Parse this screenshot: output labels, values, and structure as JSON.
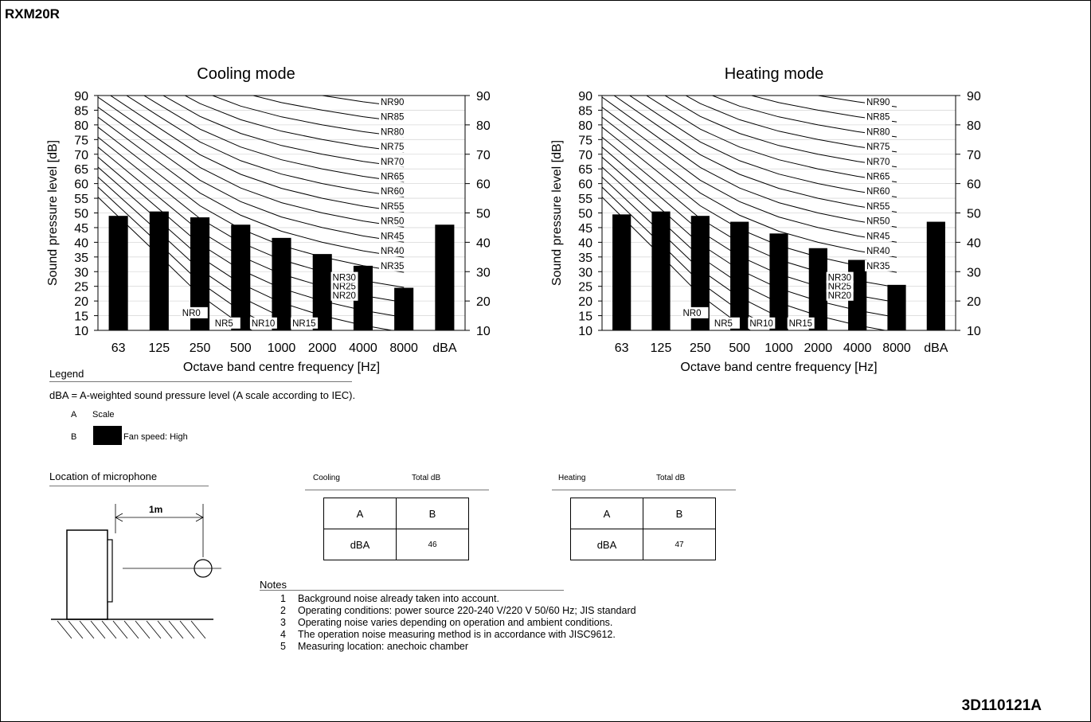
{
  "document": {
    "title": "RXM20R",
    "code": "3D110121A"
  },
  "chart_data": [
    {
      "type": "bar",
      "title": "Cooling mode",
      "xlabel": "Octave band centre frequency [Hz]",
      "ylabel": "Sound pressure level [dB]",
      "ylim": [
        10,
        90
      ],
      "left_ticks": [
        "90",
        "85",
        "80",
        "75",
        "70",
        "65",
        "60",
        "55",
        "50",
        "45",
        "40",
        "35",
        "30",
        "25",
        "20",
        "15",
        "10"
      ],
      "right_ticks": [
        "90",
        "80",
        "70",
        "60",
        "50",
        "40",
        "30",
        "20",
        "10"
      ],
      "categories": [
        "63",
        "125",
        "250",
        "500",
        "1000",
        "2000",
        "4000",
        "8000",
        "dBA"
      ],
      "series": [
        {
          "values": [
            49,
            50.5,
            48.5,
            46,
            41.5,
            36,
            32,
            24.5,
            46
          ]
        }
      ],
      "nr_curves": [
        "NR0",
        "NR5",
        "NR10",
        "NR15",
        "NR20",
        "NR25",
        "NR30",
        "NR35",
        "NR40",
        "NR45",
        "NR50",
        "NR55",
        "NR60",
        "NR65",
        "NR70",
        "NR75",
        "NR80",
        "NR85",
        "NR90"
      ],
      "grid": true
    },
    {
      "type": "bar",
      "title": "Heating mode",
      "xlabel": "Octave band centre frequency [Hz]",
      "ylabel": "Sound pressure level [dB]",
      "ylim": [
        10,
        90
      ],
      "left_ticks": [
        "90",
        "85",
        "80",
        "75",
        "70",
        "65",
        "60",
        "55",
        "50",
        "45",
        "40",
        "35",
        "30",
        "25",
        "20",
        "15",
        "10"
      ],
      "right_ticks": [
        "90",
        "80",
        "70",
        "60",
        "50",
        "40",
        "30",
        "20",
        "10"
      ],
      "categories": [
        "63",
        "125",
        "250",
        "500",
        "1000",
        "2000",
        "4000",
        "8000",
        "dBA"
      ],
      "series": [
        {
          "values": [
            49.5,
            50.5,
            49,
            47,
            43,
            38,
            34,
            25.5,
            47
          ]
        }
      ],
      "nr_curves": [
        "NR0",
        "NR5",
        "NR10",
        "NR15",
        "NR20",
        "NR25",
        "NR30",
        "NR35",
        "NR40",
        "NR45",
        "NR50",
        "NR55",
        "NR60",
        "NR65",
        "NR70",
        "NR75",
        "NR80",
        "NR85",
        "NR90"
      ],
      "grid": true
    }
  ],
  "legend": {
    "title": "Legend",
    "definition": "dBA = A-weighted sound pressure level (A scale according to IEC).",
    "row_a_key": "A",
    "row_a_label": "Scale",
    "row_b_key": "B",
    "row_b_label": "Fan speed: High"
  },
  "microphone": {
    "title": "Location of microphone",
    "distance": "1m"
  },
  "cooling_table": {
    "label": "Cooling",
    "total": "Total dB",
    "col_a": "A",
    "col_b": "B",
    "row_label": "dBA",
    "value": "46"
  },
  "heating_table": {
    "label": "Heating",
    "total": "Total dB",
    "col_a": "A",
    "col_b": "B",
    "row_label": "dBA",
    "value": "47"
  },
  "notes": {
    "title": "Notes",
    "items": [
      {
        "num": "1",
        "text": "Background noise already taken into account."
      },
      {
        "num": "2",
        "text": "Operating conditions: power source 220-240 V/220 V 50/60 Hz; JIS standard"
      },
      {
        "num": "3",
        "text": "Operating noise varies depending on operation and ambient conditions."
      },
      {
        "num": "4",
        "text": "The operation noise measuring method is in accordance with JISC9612."
      },
      {
        "num": "5",
        "text": "Measuring location: anechoic chamber"
      }
    ]
  }
}
